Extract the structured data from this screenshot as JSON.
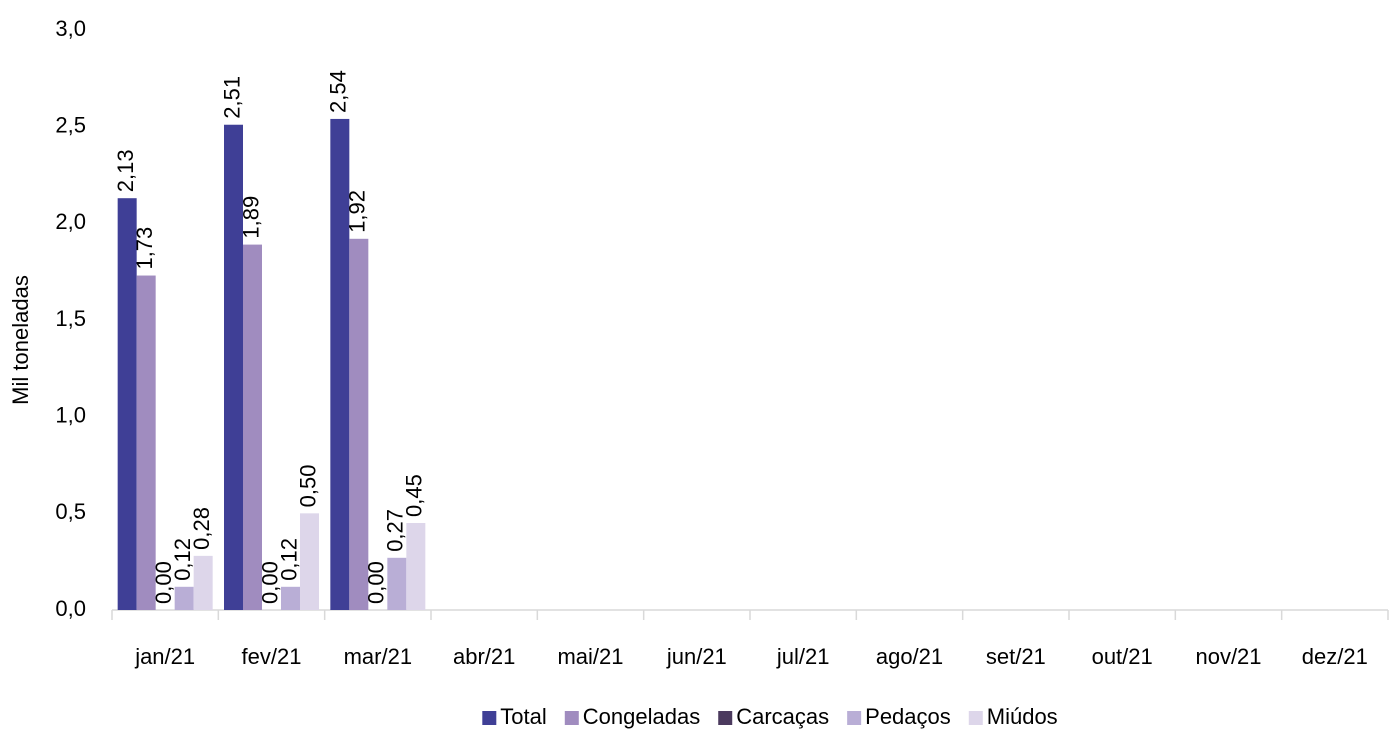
{
  "chart_data": {
    "type": "bar",
    "y_label": "Mil toneladas",
    "categories": [
      "jan/21",
      "fev/21",
      "mar/21",
      "abr/21",
      "mai/21",
      "jun/21",
      "jul/21",
      "ago/21",
      "set/21",
      "out/21",
      "nov/21",
      "dez/21"
    ],
    "series": [
      {
        "name": "Total",
        "color": "#3f3f96",
        "values": [
          2.13,
          2.51,
          2.54,
          null,
          null,
          null,
          null,
          null,
          null,
          null,
          null,
          null
        ],
        "value_labels": [
          "2,13",
          "2,51",
          "2,54",
          null,
          null,
          null,
          null,
          null,
          null,
          null,
          null,
          null
        ]
      },
      {
        "name": "Congeladas",
        "color": "#a08cbf",
        "values": [
          1.73,
          1.89,
          1.92,
          null,
          null,
          null,
          null,
          null,
          null,
          null,
          null,
          null
        ],
        "value_labels": [
          "1,73",
          "1,89",
          "1,92",
          null,
          null,
          null,
          null,
          null,
          null,
          null,
          null,
          null
        ]
      },
      {
        "name": "Carcaças",
        "color": "#4b3a5e",
        "values": [
          0,
          0,
          0,
          null,
          null,
          null,
          null,
          null,
          null,
          null,
          null,
          null
        ],
        "value_labels": [
          "0,00",
          "0,00",
          "0,00",
          null,
          null,
          null,
          null,
          null,
          null,
          null,
          null,
          null
        ]
      },
      {
        "name": "Pedaços",
        "color": "#b9aed6",
        "values": [
          0.12,
          0.12,
          0.27,
          null,
          null,
          null,
          null,
          null,
          null,
          null,
          null,
          null
        ],
        "value_labels": [
          "0,12",
          "0,12",
          "0,27",
          null,
          null,
          null,
          null,
          null,
          null,
          null,
          null,
          null
        ]
      },
      {
        "name": "Miúdos",
        "color": "#ddd6ea",
        "values": [
          0.28,
          0.5,
          0.45,
          null,
          null,
          null,
          null,
          null,
          null,
          null,
          null,
          null
        ],
        "value_labels": [
          "0,28",
          "0,50",
          "0,45",
          null,
          null,
          null,
          null,
          null,
          null,
          null,
          null,
          null
        ]
      }
    ],
    "ylim": [
      0,
      3
    ],
    "yticks": [
      {
        "value": 0,
        "label": "0,0"
      },
      {
        "value": 0.5,
        "label": "0,5"
      },
      {
        "value": 1,
        "label": "1,0"
      },
      {
        "value": 1.5,
        "label": "1,5"
      },
      {
        "value": 2,
        "label": "2,0"
      },
      {
        "value": 2.5,
        "label": "2,5"
      },
      {
        "value": 3,
        "label": "3,0"
      }
    ],
    "grid": false,
    "legend": "bottom"
  }
}
